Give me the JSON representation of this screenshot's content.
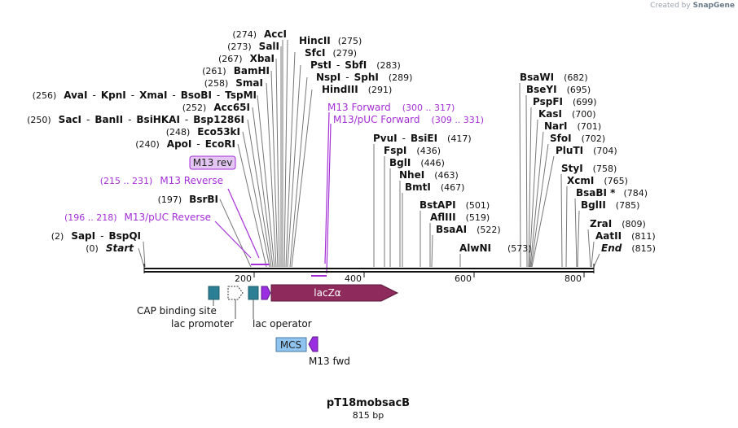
{
  "credit": {
    "prefix": "Created by",
    "brand": "SnapGene"
  },
  "plasmid": {
    "name": "pT18mobsacB",
    "size_label": "815 bp"
  },
  "axis": {
    "ticks": [
      "200",
      "400",
      "600",
      "800"
    ]
  },
  "sites": [
    {
      "pos": "(274)",
      "names": [
        "AccI"
      ]
    },
    {
      "pos": "(273)",
      "names": [
        "SalI"
      ]
    },
    {
      "pos": "(267)",
      "names": [
        "XbaI"
      ]
    },
    {
      "pos": "(261)",
      "names": [
        "BamHI"
      ]
    },
    {
      "pos": "(258)",
      "names": [
        "SmaI"
      ]
    },
    {
      "pos": "(256)",
      "names": [
        "AvaI",
        "KpnI",
        "XmaI",
        "BsoBI",
        "TspMI"
      ]
    },
    {
      "pos": "(252)",
      "names": [
        "Acc65I"
      ]
    },
    {
      "pos": "(250)",
      "names": [
        "SacI",
        "BanII",
        "BsiHKAI",
        "Bsp1286I"
      ]
    },
    {
      "pos": "(248)",
      "names": [
        "Eco53kI"
      ]
    },
    {
      "pos": "(240)",
      "names": [
        "ApoI",
        "EcoRI"
      ]
    },
    {
      "pos": "(197)",
      "names": [
        "BsrBI"
      ]
    },
    {
      "pos": "(2)",
      "names": [
        "SapI",
        "BspQI"
      ]
    },
    {
      "pos": "(0)",
      "names": [
        "Start"
      ]
    },
    {
      "pos": "(275)",
      "names": [
        "HincII"
      ]
    },
    {
      "pos": "(279)",
      "names": [
        "SfcI"
      ]
    },
    {
      "pos": "(283)",
      "names": [
        "PstI",
        "SbfI"
      ]
    },
    {
      "pos": "(289)",
      "names": [
        "NspI",
        "SphI"
      ]
    },
    {
      "pos": "(291)",
      "names": [
        "HindIII"
      ]
    },
    {
      "pos": "(417)",
      "names": [
        "PvuI",
        "BsiEI"
      ]
    },
    {
      "pos": "(436)",
      "names": [
        "FspI"
      ]
    },
    {
      "pos": "(446)",
      "names": [
        "BglI"
      ]
    },
    {
      "pos": "(463)",
      "names": [
        "NheI"
      ]
    },
    {
      "pos": "(467)",
      "names": [
        "BmtI"
      ]
    },
    {
      "pos": "(501)",
      "names": [
        "BstAPI"
      ]
    },
    {
      "pos": "(519)",
      "names": [
        "AflIII"
      ]
    },
    {
      "pos": "(522)",
      "names": [
        "BsaAI"
      ]
    },
    {
      "pos": "(573)",
      "names": [
        "AlwNI"
      ]
    },
    {
      "pos": "(682)",
      "names": [
        "BsaWI"
      ]
    },
    {
      "pos": "(695)",
      "names": [
        "BseYI"
      ]
    },
    {
      "pos": "(699)",
      "names": [
        "PspFI"
      ]
    },
    {
      "pos": "(700)",
      "names": [
        "KasI"
      ]
    },
    {
      "pos": "(701)",
      "names": [
        "NarI"
      ]
    },
    {
      "pos": "(702)",
      "names": [
        "SfoI"
      ]
    },
    {
      "pos": "(704)",
      "names": [
        "PluTI"
      ]
    },
    {
      "pos": "(758)",
      "names": [
        "StyI"
      ]
    },
    {
      "pos": "(765)",
      "names": [
        "XcmI"
      ]
    },
    {
      "pos": "(784)",
      "names": [
        "BsaBI *"
      ]
    },
    {
      "pos": "(785)",
      "names": [
        "BglII"
      ]
    },
    {
      "pos": "(809)",
      "names": [
        "ZraI"
      ]
    },
    {
      "pos": "(811)",
      "names": [
        "AatII"
      ]
    },
    {
      "pos": "(815)",
      "names": [
        "End"
      ]
    }
  ],
  "primers": [
    {
      "name": "M13 Forward",
      "range": "(300 .. 317)"
    },
    {
      "name": "M13/pUC Forward",
      "range": "(309 .. 331)"
    },
    {
      "name": "M13 rev",
      "range": ""
    },
    {
      "name": "M13 Reverse",
      "range": "(215 .. 231)"
    },
    {
      "name": "M13/pUC Reverse",
      "range": "(196 .. 218)"
    }
  ],
  "features": [
    {
      "name": "CAP binding site"
    },
    {
      "name": "lac promoter"
    },
    {
      "name": "lac operator"
    },
    {
      "name": "lacZα"
    },
    {
      "name": "MCS"
    },
    {
      "name": "M13 fwd"
    }
  ],
  "colors": {
    "primer": "#a42fd6",
    "cap_site": "#2b7f95",
    "lacz": "#8e2a5c",
    "mcs": "#8fc4f0",
    "m13": "#9a2ee0",
    "primer_box_fill": "#e4c6f3",
    "line": "#777777",
    "backbone": "#111111"
  }
}
